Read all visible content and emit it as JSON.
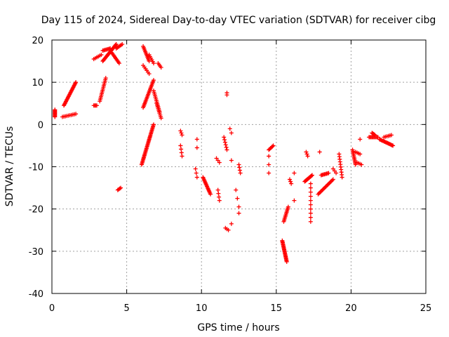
{
  "chart_data": {
    "type": "scatter",
    "title": "Day 115 of 2024, Sidereal Day-to-day VTEC variation (SDTVAR) for receiver cibg",
    "xlabel": "GPS time / hours",
    "ylabel": "SDTVAR / TECUs",
    "xlim": [
      0,
      25
    ],
    "ylim": [
      -40,
      20
    ],
    "xticks": [
      0,
      5,
      10,
      15,
      20,
      25
    ],
    "yticks": [
      -40,
      -30,
      -20,
      -10,
      0,
      10,
      20
    ],
    "grid": true,
    "marker": "+",
    "series": [
      {
        "name": "SDTVAR",
        "color": "#ff0000",
        "tracks": [
          {
            "from": [
              0.2,
              1.8
            ],
            "to": [
              0.2,
              3.5
            ],
            "n": 10
          },
          {
            "from": [
              0.8,
              4.5
            ],
            "to": [
              1.6,
              10.0
            ],
            "n": 24
          },
          {
            "from": [
              0.7,
              1.8
            ],
            "to": [
              1.6,
              2.5
            ],
            "n": 10
          },
          {
            "from": [
              2.8,
              4.5
            ],
            "to": [
              3.0,
              4.5
            ],
            "n": 4
          },
          {
            "from": [
              2.8,
              15.5
            ],
            "to": [
              3.3,
              16.5
            ],
            "n": 6
          },
          {
            "from": [
              3.2,
              5.5
            ],
            "to": [
              3.6,
              11.0
            ],
            "n": 16
          },
          {
            "from": [
              3.4,
              15.0
            ],
            "to": [
              4.3,
              19.0
            ],
            "n": 22
          },
          {
            "from": [
              3.4,
              17.5
            ],
            "to": [
              3.9,
              18.0
            ],
            "n": 8
          },
          {
            "from": [
              4.0,
              17.0
            ],
            "to": [
              4.5,
              14.5
            ],
            "n": 10
          },
          {
            "from": [
              4.3,
              18.0
            ],
            "to": [
              4.7,
              19.0
            ],
            "n": 6
          },
          {
            "from": [
              4.4,
              -15.5
            ],
            "to": [
              4.6,
              -15.0
            ],
            "n": 4
          },
          {
            "from": [
              6.1,
              18.5
            ],
            "to": [
              6.5,
              15.0
            ],
            "n": 12
          },
          {
            "from": [
              6.1,
              14.0
            ],
            "to": [
              6.5,
              12.0
            ],
            "n": 6
          },
          {
            "from": [
              6.1,
              4.0
            ],
            "to": [
              6.8,
              10.5
            ],
            "n": 22
          },
          {
            "from": [
              6.0,
              -9.5
            ],
            "to": [
              6.8,
              0.0
            ],
            "n": 36
          },
          {
            "from": [
              6.5,
              16.5
            ],
            "to": [
              6.8,
              14.5
            ],
            "n": 6
          },
          {
            "from": [
              6.8,
              8.0
            ],
            "to": [
              7.2,
              3.0
            ],
            "n": 14
          },
          {
            "from": [
              7.0,
              5.0
            ],
            "to": [
              7.3,
              1.5
            ],
            "n": 10
          },
          {
            "from": [
              7.1,
              14.5
            ],
            "to": [
              7.3,
              13.5
            ],
            "n": 4
          },
          {
            "from": [
              8.6,
              -1.5
            ],
            "to": [
              8.7,
              -2.5
            ],
            "n": 3
          },
          {
            "from": [
              8.6,
              -5.0
            ],
            "to": [
              8.7,
              -7.5
            ],
            "n": 4
          },
          {
            "from": [
              9.7,
              -3.5
            ],
            "to": [
              9.7,
              -5.5
            ],
            "n": 2
          },
          {
            "from": [
              9.6,
              -10.5
            ],
            "to": [
              9.7,
              -12.5
            ],
            "n": 3
          },
          {
            "from": [
              10.1,
              -12.5
            ],
            "to": [
              10.6,
              -16.5
            ],
            "n": 16
          },
          {
            "from": [
              11.1,
              -15.5
            ],
            "to": [
              11.2,
              -18.0
            ],
            "n": 4
          },
          {
            "from": [
              11.0,
              -8.0
            ],
            "to": [
              11.2,
              -9.0
            ],
            "n": 3
          },
          {
            "from": [
              11.5,
              -3.0
            ],
            "to": [
              11.7,
              -6.0
            ],
            "n": 6
          },
          {
            "from": [
              11.7,
              7.0
            ],
            "to": [
              11.7,
              7.5
            ],
            "n": 2
          },
          {
            "from": [
              11.6,
              -24.5
            ],
            "to": [
              11.8,
              -25.0
            ],
            "n": 3
          },
          {
            "from": [
              11.9,
              -1.0
            ],
            "to": [
              12.0,
              -2.0
            ],
            "n": 2
          },
          {
            "from": [
              12.0,
              -8.5
            ],
            "to": [
              12.0,
              -8.5
            ],
            "n": 1
          },
          {
            "from": [
              12.0,
              -23.5
            ],
            "to": [
              12.0,
              -23.5
            ],
            "n": 1
          },
          {
            "from": [
              12.3,
              -15.5
            ],
            "to": [
              12.4,
              -17.5
            ],
            "n": 2
          },
          {
            "from": [
              12.5,
              -9.5
            ],
            "to": [
              12.6,
              -11.5
            ],
            "n": 4
          },
          {
            "from": [
              12.5,
              -19.5
            ],
            "to": [
              12.5,
              -21.0
            ],
            "n": 2
          },
          {
            "from": [
              14.5,
              -7.5
            ],
            "to": [
              14.5,
              -11.5
            ],
            "n": 3
          },
          {
            "from": [
              14.5,
              -6.0
            ],
            "to": [
              14.8,
              -5.0
            ],
            "n": 6
          },
          {
            "from": [
              15.5,
              -23.0
            ],
            "to": [
              15.8,
              -19.5
            ],
            "n": 12
          },
          {
            "from": [
              15.4,
              -27.5
            ],
            "to": [
              15.7,
              -32.5
            ],
            "n": 22
          },
          {
            "from": [
              15.9,
              -13.0
            ],
            "to": [
              16.0,
              -14.0
            ],
            "n": 3
          },
          {
            "from": [
              16.2,
              -11.5
            ],
            "to": [
              16.2,
              -11.5
            ],
            "n": 1
          },
          {
            "from": [
              16.2,
              -18.0
            ],
            "to": [
              16.2,
              -18.0
            ],
            "n": 1
          },
          {
            "from": [
              16.9,
              -13.5
            ],
            "to": [
              17.4,
              -12.0
            ],
            "n": 12
          },
          {
            "from": [
              17.0,
              -6.5
            ],
            "to": [
              17.1,
              -7.5
            ],
            "n": 3
          },
          {
            "from": [
              17.3,
              -14.0
            ],
            "to": [
              17.3,
              -23.0
            ],
            "n": 10
          },
          {
            "from": [
              17.9,
              -6.5
            ],
            "to": [
              17.9,
              -6.5
            ],
            "n": 1
          },
          {
            "from": [
              17.8,
              -16.5
            ],
            "to": [
              18.8,
              -13.0
            ],
            "n": 16
          },
          {
            "from": [
              18.0,
              -12.0
            ],
            "to": [
              18.5,
              -11.5
            ],
            "n": 8
          },
          {
            "from": [
              18.8,
              -10.5
            ],
            "to": [
              19.0,
              -11.5
            ],
            "n": 3
          },
          {
            "from": [
              19.2,
              -7.0
            ],
            "to": [
              19.4,
              -12.5
            ],
            "n": 10
          },
          {
            "from": [
              20.1,
              -6.0
            ],
            "to": [
              20.3,
              -9.5
            ],
            "n": 12
          },
          {
            "from": [
              20.3,
              -6.5
            ],
            "to": [
              20.6,
              -7.0
            ],
            "n": 4
          },
          {
            "from": [
              20.4,
              -9.0
            ],
            "to": [
              20.7,
              -9.5
            ],
            "n": 4
          },
          {
            "from": [
              20.6,
              -3.5
            ],
            "to": [
              20.6,
              -3.5
            ],
            "n": 1
          },
          {
            "from": [
              21.2,
              -3.0
            ],
            "to": [
              21.8,
              -3.0
            ],
            "n": 10
          },
          {
            "from": [
              21.4,
              -2.0
            ],
            "to": [
              21.6,
              -2.5
            ],
            "n": 5
          },
          {
            "from": [
              21.9,
              -3.5
            ],
            "to": [
              22.8,
              -5.0
            ],
            "n": 16
          },
          {
            "from": [
              22.2,
              -3.0
            ],
            "to": [
              22.7,
              -2.5
            ],
            "n": 6
          }
        ]
      }
    ]
  }
}
